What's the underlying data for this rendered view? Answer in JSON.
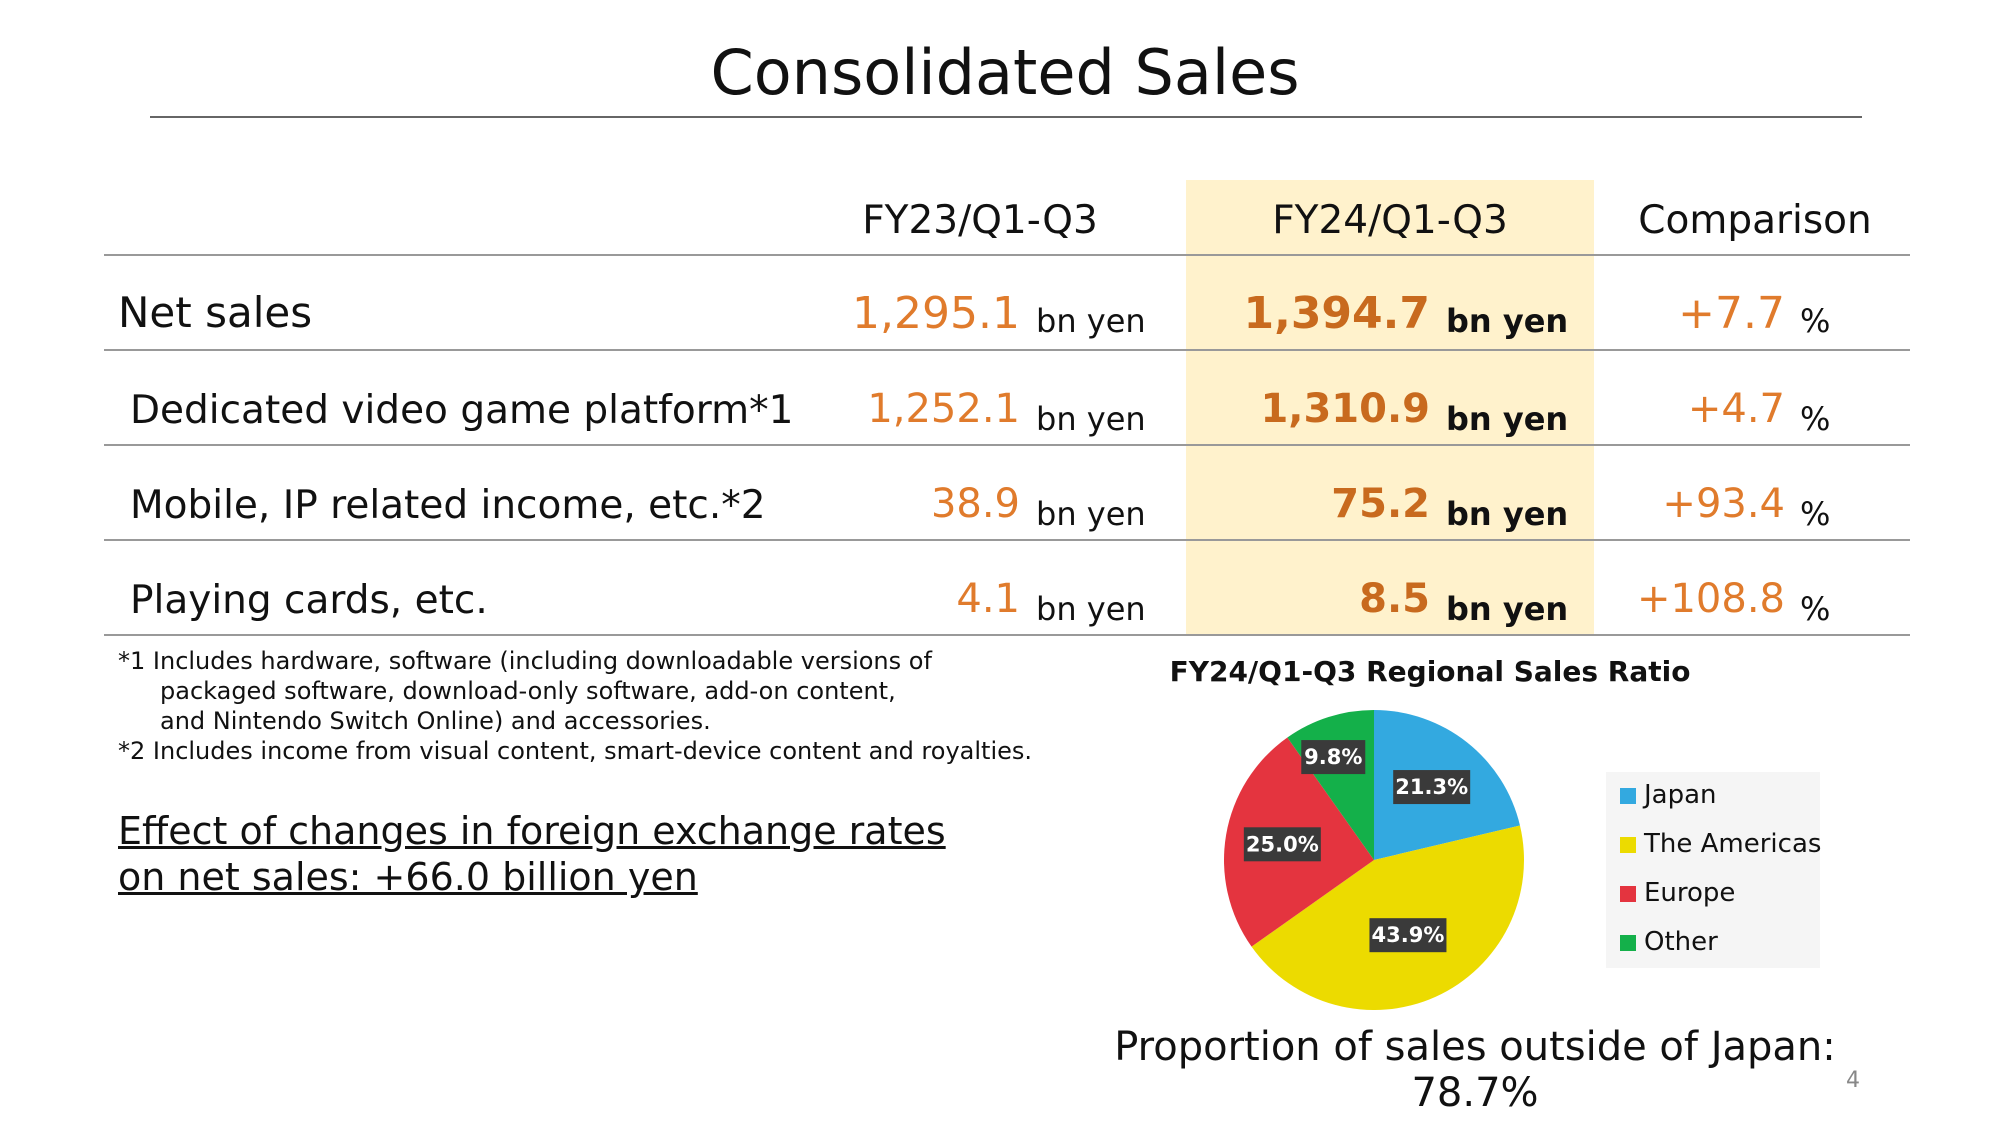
{
  "title": "Consolidated Sales",
  "table": {
    "headers": [
      "FY23/Q1-Q3",
      "FY24/Q1-Q3",
      "Comparison"
    ],
    "rows": [
      {
        "label": "Net sales",
        "fy23": "1,295.1",
        "fy24": "1,394.7",
        "cmp": "+7.7"
      },
      {
        "label": "Dedicated video game platform*1",
        "fy23": "1,252.1",
        "fy24": "1,310.9",
        "cmp": "+4.7"
      },
      {
        "label": "Mobile, IP related income, etc.*2",
        "fy23": "38.9",
        "fy24": "75.2",
        "cmp": "+93.4"
      },
      {
        "label": "Playing cards, etc.",
        "fy23": "4.1",
        "fy24": "8.5",
        "cmp": "+108.8"
      }
    ],
    "unit": "bn yen",
    "pct": "%"
  },
  "notes": [
    "*1 Includes hardware, software (including downloadable versions of",
    "packaged software, download-only software, add-on content,",
    "and Nintendo Switch Online) and accessories.",
    "*2 Includes income from visual content, smart-device content and royalties."
  ],
  "fx": {
    "line1": "Effect of changes in foreign exchange rates",
    "line2": "on net sales: +66.0 billion yen"
  },
  "chart_data": {
    "type": "pie",
    "title": "FY24/Q1-Q3 Regional Sales Ratio",
    "categories": [
      "Japan",
      "The Americas",
      "Europe",
      "Other"
    ],
    "values": [
      21.3,
      43.9,
      25.0,
      9.8
    ],
    "labels": [
      "21.3%",
      "43.9%",
      "25.0%",
      "9.8%"
    ],
    "colors": [
      "#33a9e0",
      "#ecdb00",
      "#e4343f",
      "#14b04a"
    ],
    "legend": "right"
  },
  "outside_japan": "Proportion of sales outside of Japan: 78.7%",
  "page_number": "4"
}
